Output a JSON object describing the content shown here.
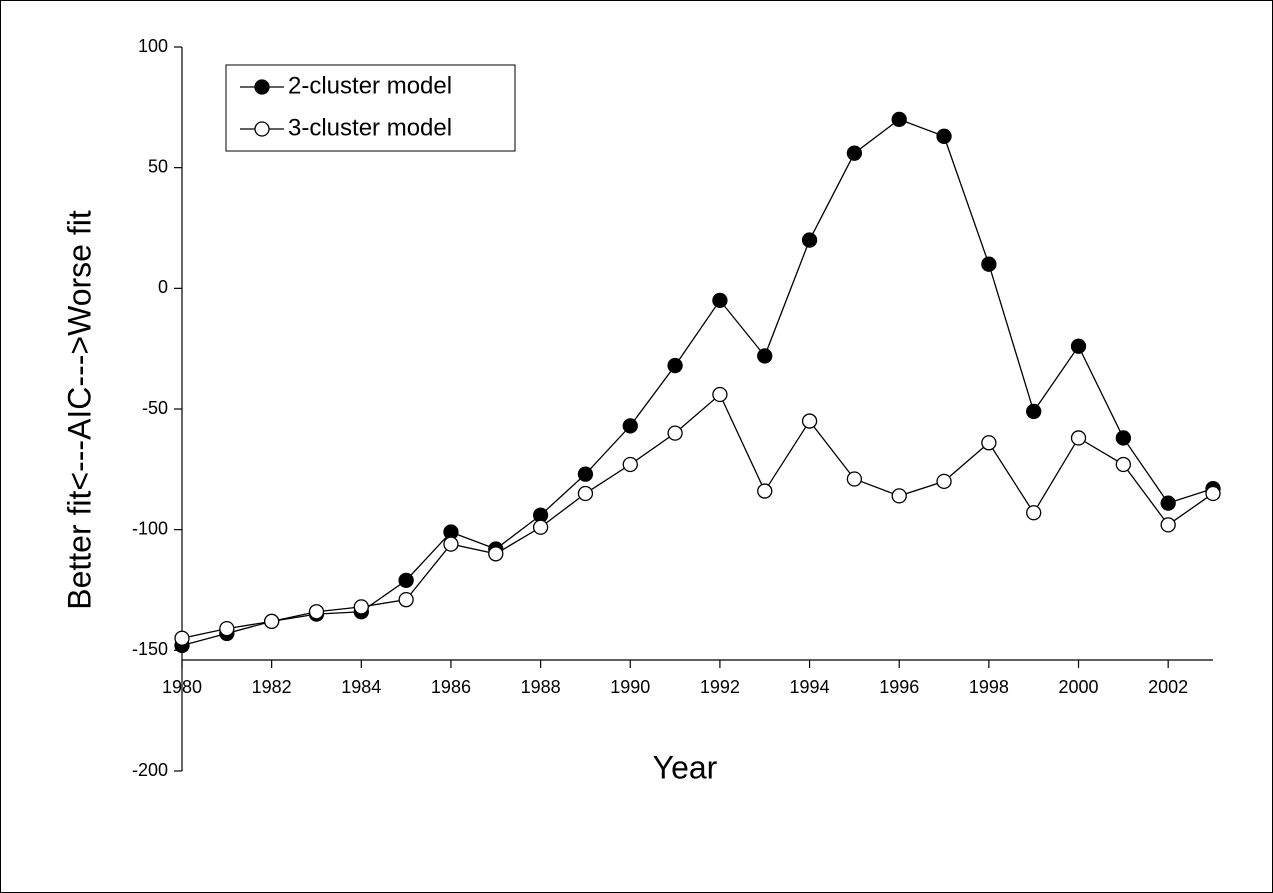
{
  "chart_data": {
    "type": "line",
    "x_label": "Year",
    "y_label": "Better fit<---AIC--->Worse fit",
    "x": [
      1980,
      1981,
      1982,
      1983,
      1984,
      1985,
      1986,
      1987,
      1988,
      1989,
      1990,
      1991,
      1992,
      1993,
      1994,
      1995,
      1996,
      1997,
      1998,
      1999,
      2000,
      2001,
      2002,
      2003
    ],
    "series": [
      {
        "name": "2-cluster model",
        "color": "#000000",
        "marker_fill": "#000000",
        "values": [
          -148,
          -143,
          -138,
          -135,
          -134,
          -121,
          -101,
          -108,
          -94,
          -77,
          -57,
          -32,
          -5,
          -28,
          20,
          56,
          70,
          63,
          10,
          -51,
          -24,
          -62,
          -89,
          -83
        ]
      },
      {
        "name": "3-cluster model",
        "color": "#000000",
        "marker_fill": "#ffffff",
        "values": [
          -145,
          -141,
          -138,
          -134,
          -132,
          -129,
          -106,
          -110,
          -99,
          -85,
          -73,
          -60,
          -44,
          -84,
          -55,
          -79,
          -86,
          -80,
          -64,
          -93,
          -62,
          -73,
          -98,
          -85
        ]
      }
    ],
    "xlim": [
      1980,
      2003
    ],
    "xticks": [
      1980,
      1982,
      1984,
      1986,
      1988,
      1990,
      1992,
      1994,
      1996,
      1998,
      2000,
      2002
    ],
    "ylim": [
      -200,
      100
    ],
    "yticks": [
      -200,
      -150,
      -100,
      -50,
      0,
      50,
      100
    ],
    "legend": "upper left"
  }
}
